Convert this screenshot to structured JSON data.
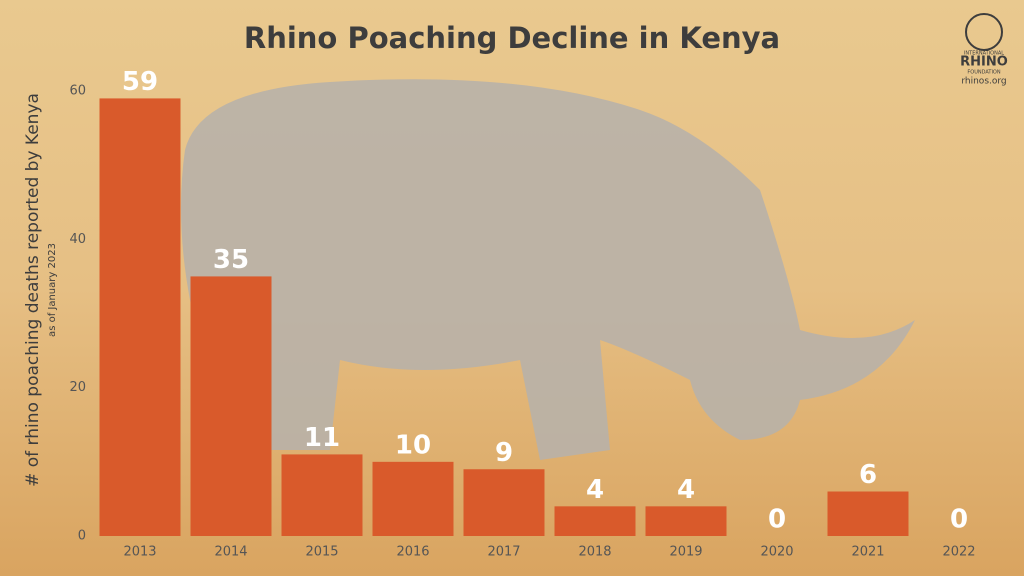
{
  "chart_data": {
    "type": "bar",
    "title": "Rhino Poaching Decline in Kenya",
    "y_label": "# of rhino poaching deaths reported by Kenya",
    "y_sublabel": "as of January 2023",
    "categories": [
      "2013",
      "2014",
      "2015",
      "2016",
      "2017",
      "2018",
      "2019",
      "2020",
      "2021",
      "2022"
    ],
    "values": [
      59,
      35,
      11,
      10,
      9,
      4,
      4,
      0,
      6,
      0
    ],
    "color": "#d95a2b",
    "ylim": [
      0,
      60
    ],
    "yticks": [
      0,
      20,
      40,
      60
    ],
    "grid": false
  },
  "logo": {
    "top": "INTERNATIONAL",
    "name": "RHINO",
    "bottom": "FOUNDATION",
    "url": "rhinos.org"
  }
}
